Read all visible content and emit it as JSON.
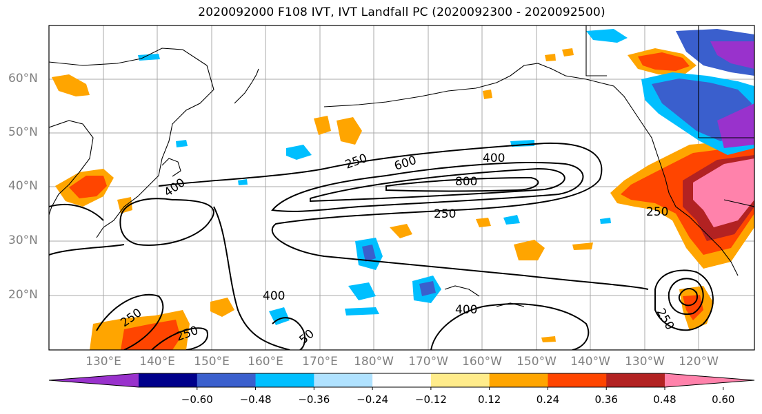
{
  "title": "2020092000 F108 IVT, IVT Landfall PC (2020092300 - 2020092500)",
  "lat_labels": [
    "60°N",
    "50°N",
    "40°N",
    "30°N",
    "20°N"
  ],
  "lon_labels": [
    "130°E",
    "140°E",
    "150°E",
    "160°E",
    "170°E",
    "180°W",
    "170°W",
    "160°W",
    "150°W",
    "140°W",
    "130°W",
    "120°W"
  ],
  "contour_labels": [
    "250",
    "600",
    "400",
    "800",
    "250",
    "400",
    "400",
    "250",
    "250",
    "250",
    "400",
    "250",
    "50"
  ],
  "colorbar": {
    "tick_labels": [
      "-0.60",
      "-0.48",
      "-0.36",
      "-0.24",
      "-0.12",
      "0.12",
      "0.24",
      "0.36",
      "0.48",
      "0.60"
    ],
    "colors": [
      "#9932cc",
      "#00008b",
      "#3a5fcd",
      "#00bfff",
      "#b0e2ff",
      "#ffffff",
      "#ffec8b",
      "#ffa500",
      "#ff4500",
      "#b22222",
      "#ff82ab"
    ]
  },
  "colors": {
    "contour": "#000000",
    "coastline": "#000000",
    "grid": "#a9a9a9",
    "axis_label": "#808080"
  }
}
